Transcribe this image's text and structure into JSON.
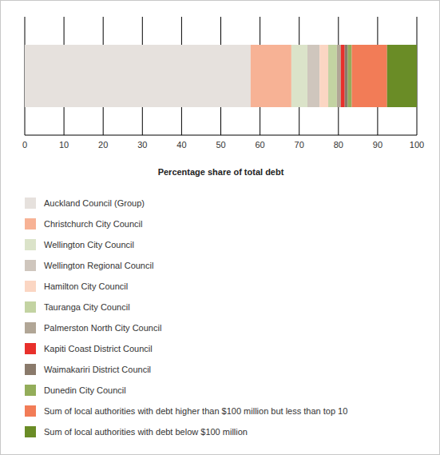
{
  "chart_data": {
    "type": "bar",
    "orientation": "horizontal",
    "stacked": true,
    "categories": [
      null
    ],
    "x_label": "Percentage share of total debt",
    "xlim": [
      0,
      100
    ],
    "xticks": [
      0,
      10,
      20,
      30,
      40,
      50,
      60,
      70,
      80,
      90,
      100
    ],
    "grid": true,
    "tick_labels": "x",
    "legend": "bottom",
    "series": [
      {
        "name": "Auckland Council (Group)",
        "color": "#e6e1dd",
        "values": [
          57.6
        ]
      },
      {
        "name": "Christchurch City Council",
        "color": "#f7b295",
        "values": [
          10.4
        ]
      },
      {
        "name": "Wellington City Council",
        "color": "#dbe3c9",
        "values": [
          4.1
        ]
      },
      {
        "name": "Wellington Regional Council",
        "color": "#cfc6bd",
        "values": [
          3.1
        ]
      },
      {
        "name": "Hamilton City Council",
        "color": "#fbd6c3",
        "values": [
          2.2
        ]
      },
      {
        "name": "Tauranga City Council",
        "color": "#c3d3a2",
        "values": [
          2.2
        ]
      },
      {
        "name": "Palmerston North City Council",
        "color": "#b1a696",
        "values": [
          1.0
        ]
      },
      {
        "name": "Kapiti Coast District Council",
        "color": "#e8302b",
        "values": [
          1.0
        ]
      },
      {
        "name": "Waimakariri District Council",
        "color": "#8a7a6b",
        "values": [
          0.8
        ]
      },
      {
        "name": "Dunedin City Council",
        "color": "#93ad5a",
        "values": [
          1.0
        ]
      },
      {
        "name": "Sum of local authorities with debt higher than $100 million but less than top 10",
        "color": "#f27c57",
        "values": [
          9.0
        ]
      },
      {
        "name": "Sum of local authorities with debt below $100 million",
        "color": "#6a8c26",
        "values": [
          7.6
        ]
      }
    ]
  }
}
